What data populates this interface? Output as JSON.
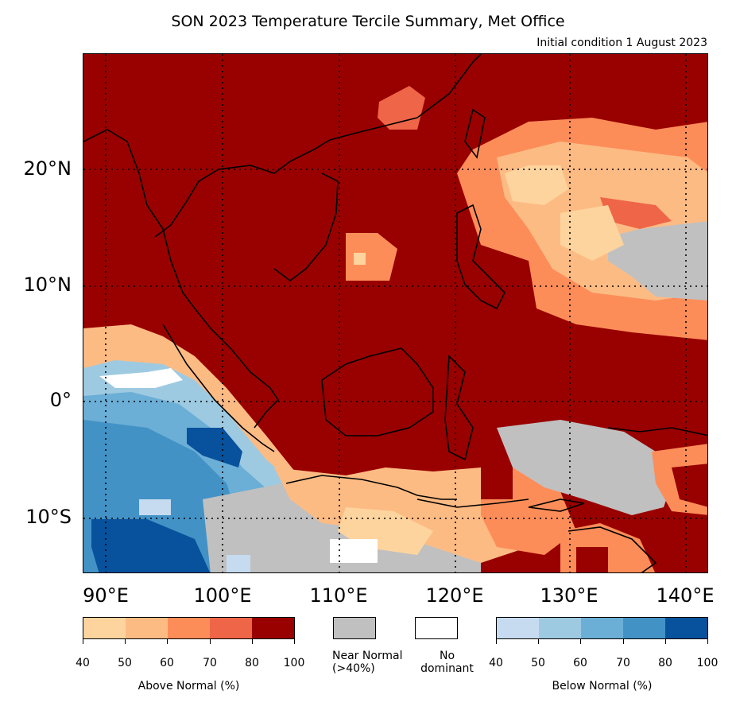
{
  "title": "SON 2023 Temperature Tercile Summary, Met Office",
  "subtitle": "Initial condition 1 August 2023",
  "map": {
    "latitude_labels": [
      "20°N",
      "10°N",
      "0°",
      "10°S"
    ],
    "longitude_labels": [
      "90°E",
      "100°E",
      "110°E",
      "120°E",
      "130°E",
      "140°E"
    ],
    "extent": {
      "lon": [
        88,
        141.5
      ],
      "lat": [
        -14.5,
        30
      ]
    },
    "gridlines": "dotted"
  },
  "legend": {
    "above_normal": {
      "label": "Above Normal (%)",
      "ticks": [
        "40",
        "50",
        "60",
        "70",
        "80",
        "100"
      ],
      "colors": [
        "#fdd49e",
        "#fdbb84",
        "#fc8d59",
        "#ef6548",
        "#990000"
      ]
    },
    "near_normal": {
      "label": "Near Normal (>40%)",
      "color": "#c0c0c0"
    },
    "no_dominant": {
      "label": "No dominant",
      "color": "#ffffff"
    },
    "below_normal": {
      "label": "Below Normal (%)",
      "ticks": [
        "40",
        "50",
        "60",
        "70",
        "80",
        "100"
      ],
      "colors": [
        "#c6dbef",
        "#9ecae1",
        "#6baed6",
        "#4292c6",
        "#08519c"
      ]
    }
  }
}
